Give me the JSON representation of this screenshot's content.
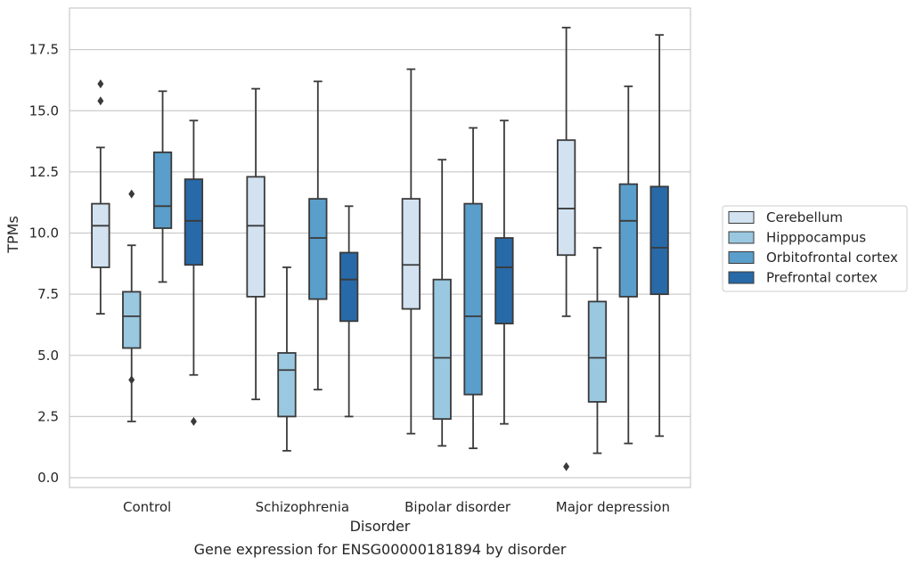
{
  "chart_data": {
    "type": "box",
    "title": "",
    "xlabel": "Disorder",
    "ylabel": "TPMs",
    "caption": "Gene expression for ENSG00000181894 by disorder",
    "ylim": [
      -0.4,
      19.2
    ],
    "yticks": [
      "0.0",
      "2.5",
      "5.0",
      "7.5",
      "10.0",
      "12.5",
      "15.0",
      "17.5"
    ],
    "ytick_values": [
      0,
      2.5,
      5,
      7.5,
      10,
      12.5,
      15,
      17.5
    ],
    "grid": "horizontal",
    "legend_position": "right",
    "categories": [
      "Control",
      "Schizophrenia",
      "Bipolar disorder",
      "Major depression"
    ],
    "series": [
      {
        "name": "Cerebellum",
        "color": "#d2e2f1",
        "boxes": [
          {
            "whisker_low": 6.7,
            "q1": 8.6,
            "median": 10.3,
            "q3": 11.2,
            "whisker_high": 13.5,
            "outliers": [
              15.4,
              16.1
            ]
          },
          {
            "whisker_low": 3.2,
            "q1": 7.4,
            "median": 10.3,
            "q3": 12.3,
            "whisker_high": 15.9,
            "outliers": []
          },
          {
            "whisker_low": 1.8,
            "q1": 6.9,
            "median": 8.7,
            "q3": 11.4,
            "whisker_high": 16.7,
            "outliers": []
          },
          {
            "whisker_low": 6.6,
            "q1": 9.1,
            "median": 11.0,
            "q3": 13.8,
            "whisker_high": 18.4,
            "outliers": [
              0.45
            ]
          }
        ]
      },
      {
        "name": "Hipppocampus",
        "color": "#9ac8e0",
        "boxes": [
          {
            "whisker_low": 2.3,
            "q1": 5.3,
            "median": 6.6,
            "q3": 7.6,
            "whisker_high": 9.5,
            "outliers": [
              4.0,
              11.6
            ]
          },
          {
            "whisker_low": 1.1,
            "q1": 2.5,
            "median": 4.4,
            "q3": 5.1,
            "whisker_high": 8.6,
            "outliers": []
          },
          {
            "whisker_low": 1.3,
            "q1": 2.4,
            "median": 4.9,
            "q3": 8.1,
            "whisker_high": 13.0,
            "outliers": []
          },
          {
            "whisker_low": 1.0,
            "q1": 3.1,
            "median": 4.9,
            "q3": 7.2,
            "whisker_high": 9.4,
            "outliers": []
          }
        ]
      },
      {
        "name": "Orbitofrontal cortex",
        "color": "#5a9ecb",
        "boxes": [
          {
            "whisker_low": 8.0,
            "q1": 10.2,
            "median": 11.1,
            "q3": 13.3,
            "whisker_high": 15.8,
            "outliers": []
          },
          {
            "whisker_low": 3.6,
            "q1": 7.3,
            "median": 9.8,
            "q3": 11.4,
            "whisker_high": 16.2,
            "outliers": []
          },
          {
            "whisker_low": 1.2,
            "q1": 3.4,
            "median": 6.6,
            "q3": 11.2,
            "whisker_high": 14.3,
            "outliers": []
          },
          {
            "whisker_low": 1.4,
            "q1": 7.4,
            "median": 10.5,
            "q3": 12.0,
            "whisker_high": 16.0,
            "outliers": []
          }
        ]
      },
      {
        "name": "Prefrontal cortex",
        "color": "#2869a8",
        "boxes": [
          {
            "whisker_low": 4.2,
            "q1": 8.7,
            "median": 10.5,
            "q3": 12.2,
            "whisker_high": 14.6,
            "outliers": [
              2.3
            ]
          },
          {
            "whisker_low": 2.5,
            "q1": 6.4,
            "median": 8.1,
            "q3": 9.2,
            "whisker_high": 11.1,
            "outliers": []
          },
          {
            "whisker_low": 2.2,
            "q1": 6.3,
            "median": 8.6,
            "q3": 9.8,
            "whisker_high": 14.6,
            "outliers": []
          },
          {
            "whisker_low": 1.7,
            "q1": 7.5,
            "median": 9.4,
            "q3": 11.9,
            "whisker_high": 18.1,
            "outliers": []
          }
        ]
      }
    ]
  }
}
